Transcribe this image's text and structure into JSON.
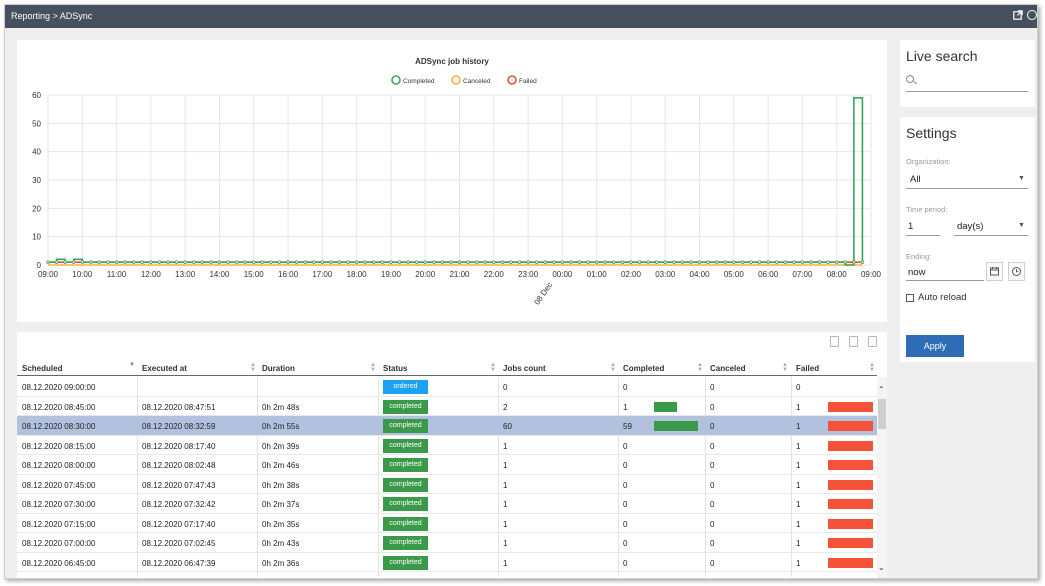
{
  "topbar": {
    "breadcrumb": "Reporting > ADSync"
  },
  "chart_data": {
    "type": "line",
    "title": "ADSync job history",
    "legend": [
      "Completed",
      "Canceled",
      "Failed"
    ],
    "legend_position": "top-center",
    "colors": {
      "Completed": "#3aa55d",
      "Canceled": "#f0b63a",
      "Failed": "#e4503f"
    },
    "yticks": [
      0,
      10,
      20,
      30,
      40,
      50,
      60
    ],
    "ylim": [
      0,
      60
    ],
    "xticks": [
      "09:00",
      "10:00",
      "11:00",
      "12:00",
      "13:00",
      "14:00",
      "15:00",
      "16:00",
      "17:00",
      "18:00",
      "19:00",
      "20:00",
      "21:00",
      "22:00",
      "23:00",
      "00:00",
      "01:00",
      "02:00",
      "03:00",
      "04:00",
      "05:00",
      "06:00",
      "07:00",
      "08:00",
      "09:00"
    ],
    "date_label": "08 Dec",
    "grid": true,
    "series": [
      {
        "name": "Completed",
        "x": [
          "09:00",
          "09:15",
          "09:30",
          "09:45",
          "10:00",
          "10:15",
          "10:30",
          "08:15",
          "08:30",
          "08:45"
        ],
        "values": [
          1,
          2,
          1,
          2,
          1,
          1,
          1,
          0,
          59,
          1
        ]
      },
      {
        "name": "Canceled",
        "x": [
          "09:00",
          "08:45"
        ],
        "values": [
          0,
          0
        ]
      },
      {
        "name": "Failed",
        "x": [
          "09:00",
          "10:00",
          "10:15",
          "08:45"
        ],
        "values": [
          1,
          1,
          1,
          1
        ]
      }
    ]
  },
  "table": {
    "columns": [
      "Scheduled",
      "Executed at",
      "Duration",
      "Status",
      "Jobs count",
      "Completed",
      "Canceled",
      "Failed"
    ],
    "rows": [
      {
        "scheduled": "08.12.2020 09:00:00",
        "executed": "",
        "duration": "",
        "status": "ordered",
        "jobs": "0",
        "completed": "0",
        "canceled": "0",
        "failed": "0",
        "completed_frac": 0,
        "failed_frac": 0
      },
      {
        "scheduled": "08.12.2020 08:45:00",
        "executed": "08.12.2020 08:47:51",
        "duration": "0h 2m 48s",
        "status": "completed",
        "jobs": "2",
        "completed": "1",
        "canceled": "0",
        "failed": "1",
        "completed_frac": 0.5,
        "failed_frac": 0.5
      },
      {
        "scheduled": "08.12.2020 08:30:00",
        "executed": "08.12.2020 08:32:59",
        "duration": "0h 2m 55s",
        "status": "completed",
        "jobs": "60",
        "completed": "59",
        "canceled": "0",
        "failed": "1",
        "completed_frac": 0.98,
        "failed_frac": 0.02,
        "selected": true
      },
      {
        "scheduled": "08.12.2020 08:15:00",
        "executed": "08.12.2020 08:17:40",
        "duration": "0h 2m 39s",
        "status": "completed",
        "jobs": "1",
        "completed": "0",
        "canceled": "0",
        "failed": "1",
        "completed_frac": 0,
        "failed_frac": 1
      },
      {
        "scheduled": "08.12.2020 08:00:00",
        "executed": "08.12.2020 08:02:48",
        "duration": "0h 2m 46s",
        "status": "completed",
        "jobs": "1",
        "completed": "0",
        "canceled": "0",
        "failed": "1",
        "completed_frac": 0,
        "failed_frac": 1
      },
      {
        "scheduled": "08.12.2020 07:45:00",
        "executed": "08.12.2020 07:47:43",
        "duration": "0h 2m 38s",
        "status": "completed",
        "jobs": "1",
        "completed": "0",
        "canceled": "0",
        "failed": "1",
        "completed_frac": 0,
        "failed_frac": 1
      },
      {
        "scheduled": "08.12.2020 07:30:00",
        "executed": "08.12.2020 07:32:42",
        "duration": "0h 2m 37s",
        "status": "completed",
        "jobs": "1",
        "completed": "0",
        "canceled": "0",
        "failed": "1",
        "completed_frac": 0,
        "failed_frac": 1
      },
      {
        "scheduled": "08.12.2020 07:15:00",
        "executed": "08.12.2020 07:17:40",
        "duration": "0h 2m 35s",
        "status": "completed",
        "jobs": "1",
        "completed": "0",
        "canceled": "0",
        "failed": "1",
        "completed_frac": 0,
        "failed_frac": 1
      },
      {
        "scheduled": "08.12.2020 07:00:00",
        "executed": "08.12.2020 07:02:45",
        "duration": "0h 2m 43s",
        "status": "completed",
        "jobs": "1",
        "completed": "0",
        "canceled": "0",
        "failed": "1",
        "completed_frac": 0,
        "failed_frac": 1
      },
      {
        "scheduled": "08.12.2020 06:45:00",
        "executed": "08.12.2020 06:47:39",
        "duration": "0h 2m 36s",
        "status": "completed",
        "jobs": "1",
        "completed": "0",
        "canceled": "0",
        "failed": "1",
        "completed_frac": 0,
        "failed_frac": 1
      }
    ]
  },
  "live_search": {
    "title": "Live search",
    "placeholder": ""
  },
  "settings": {
    "title": "Settings",
    "organization_label": "Organization:",
    "organization_value": "All",
    "time_period_label": "Time period:",
    "time_period_value": "1",
    "time_period_unit": "day(s)",
    "ending_label": "Ending:",
    "ending_value": "now",
    "auto_reload_label": "Auto reload",
    "apply_label": "Apply"
  },
  "icons": [
    "external-link-icon",
    "search-icon",
    "copy-icon",
    "excel-icon",
    "pdf-icon",
    "calendar-icon",
    "clock-icon",
    "chevron-down-icon",
    "sort-icon"
  ]
}
